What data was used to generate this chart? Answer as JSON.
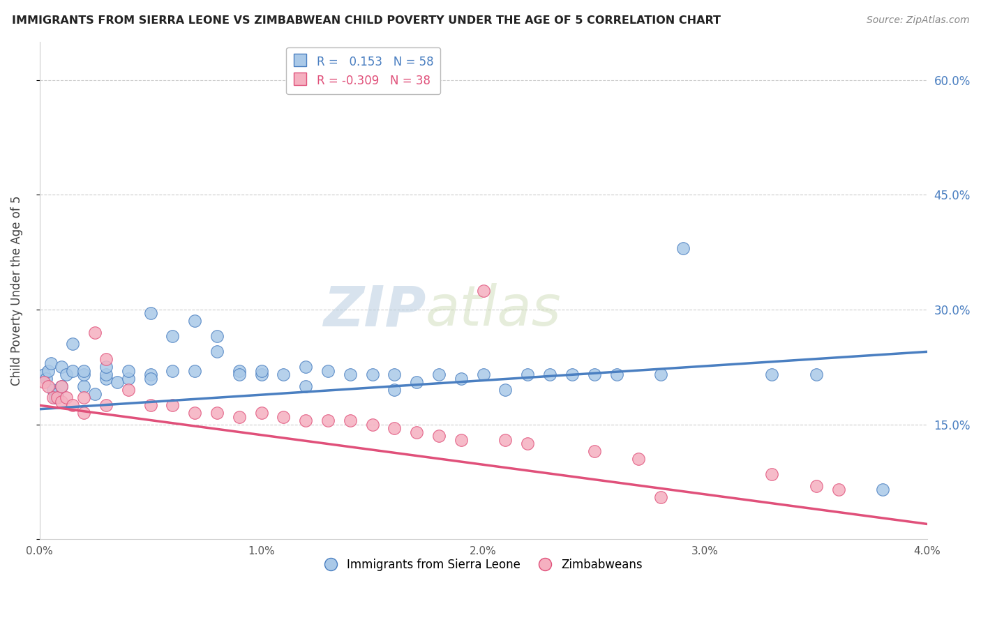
{
  "title": "IMMIGRANTS FROM SIERRA LEONE VS ZIMBABWEAN CHILD POVERTY UNDER THE AGE OF 5 CORRELATION CHART",
  "source": "Source: ZipAtlas.com",
  "ylabel": "Child Poverty Under the Age of 5",
  "r_blue": 0.153,
  "n_blue": 58,
  "r_pink": -0.309,
  "n_pink": 38,
  "xlim": [
    0.0,
    0.04
  ],
  "ylim": [
    0.0,
    0.65
  ],
  "yticks": [
    0.0,
    0.15,
    0.3,
    0.45,
    0.6
  ],
  "ytick_labels": [
    "",
    "15.0%",
    "30.0%",
    "45.0%",
    "60.0%"
  ],
  "xticks": [
    0.0,
    0.01,
    0.02,
    0.03,
    0.04
  ],
  "xtick_labels": [
    "0.0%",
    "1.0%",
    "2.0%",
    "3.0%",
    "4.0%"
  ],
  "legend_label_blue": "Immigrants from Sierra Leone",
  "legend_label_pink": "Zimbabweans",
  "watermark_zip": "ZIP",
  "watermark_atlas": "atlas",
  "blue_color": "#aac9e8",
  "pink_color": "#f5b0c0",
  "line_blue": "#4a7fc1",
  "line_pink": "#e0507a",
  "blue_scatter_x": [
    0.0002,
    0.0003,
    0.0004,
    0.0005,
    0.0006,
    0.0007,
    0.0008,
    0.001,
    0.001,
    0.0012,
    0.0015,
    0.0015,
    0.002,
    0.002,
    0.002,
    0.0025,
    0.003,
    0.003,
    0.003,
    0.0035,
    0.004,
    0.004,
    0.005,
    0.005,
    0.005,
    0.006,
    0.006,
    0.007,
    0.007,
    0.008,
    0.008,
    0.009,
    0.009,
    0.01,
    0.01,
    0.011,
    0.012,
    0.012,
    0.013,
    0.014,
    0.015,
    0.016,
    0.016,
    0.017,
    0.018,
    0.019,
    0.02,
    0.021,
    0.022,
    0.023,
    0.024,
    0.025,
    0.026,
    0.028,
    0.029,
    0.033,
    0.035,
    0.038
  ],
  "blue_scatter_y": [
    0.215,
    0.21,
    0.22,
    0.23,
    0.195,
    0.185,
    0.19,
    0.2,
    0.225,
    0.215,
    0.255,
    0.22,
    0.2,
    0.215,
    0.22,
    0.19,
    0.21,
    0.215,
    0.225,
    0.205,
    0.21,
    0.22,
    0.215,
    0.21,
    0.295,
    0.22,
    0.265,
    0.285,
    0.22,
    0.265,
    0.245,
    0.22,
    0.215,
    0.215,
    0.22,
    0.215,
    0.225,
    0.2,
    0.22,
    0.215,
    0.215,
    0.195,
    0.215,
    0.205,
    0.215,
    0.21,
    0.215,
    0.195,
    0.215,
    0.215,
    0.215,
    0.215,
    0.215,
    0.215,
    0.38,
    0.215,
    0.215,
    0.065
  ],
  "pink_scatter_x": [
    0.0002,
    0.0004,
    0.0006,
    0.0008,
    0.001,
    0.001,
    0.0012,
    0.0015,
    0.002,
    0.002,
    0.0025,
    0.003,
    0.003,
    0.004,
    0.005,
    0.006,
    0.007,
    0.008,
    0.009,
    0.01,
    0.011,
    0.012,
    0.013,
    0.014,
    0.015,
    0.016,
    0.017,
    0.018,
    0.019,
    0.02,
    0.021,
    0.022,
    0.025,
    0.027,
    0.028,
    0.033,
    0.035,
    0.036
  ],
  "pink_scatter_y": [
    0.205,
    0.2,
    0.185,
    0.185,
    0.18,
    0.2,
    0.185,
    0.175,
    0.165,
    0.185,
    0.27,
    0.175,
    0.235,
    0.195,
    0.175,
    0.175,
    0.165,
    0.165,
    0.16,
    0.165,
    0.16,
    0.155,
    0.155,
    0.155,
    0.15,
    0.145,
    0.14,
    0.135,
    0.13,
    0.325,
    0.13,
    0.125,
    0.115,
    0.105,
    0.055,
    0.085,
    0.07,
    0.065
  ],
  "blue_line_y0": 0.17,
  "blue_line_y1": 0.245,
  "pink_line_y0": 0.175,
  "pink_line_y1": 0.02
}
